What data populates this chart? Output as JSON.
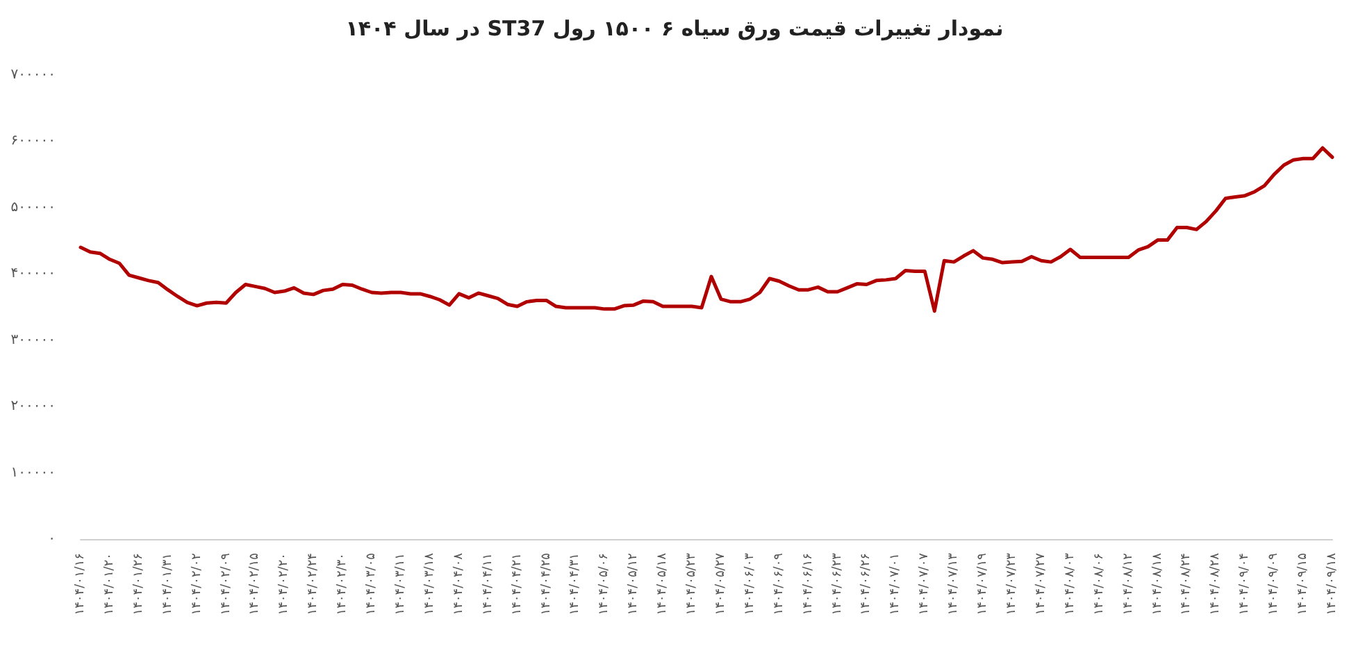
{
  "chart_data": {
    "type": "line",
    "title": "نمودار تغییرات قیمت ورق سیاه ۶ ۱۵۰۰ رول ST37 در سال ۱۴۰۴",
    "categories": [
      "۱۴۰۴/۰۱/۱۶",
      null,
      null,
      "۱۴۰۴/۰۱/۲۰",
      null,
      null,
      "۱۴۰۴/۰۱/۲۶",
      null,
      null,
      "۱۴۰۴/۰۱/۳۱",
      null,
      null,
      "۱۴۰۴/۰۲/۰۲",
      null,
      null,
      "۱۴۰۴/۰۲/۰۹",
      null,
      null,
      "۱۴۰۴/۰۲/۱۵",
      null,
      null,
      "۱۴۰۴/۰۲/۲۰",
      null,
      null,
      "۱۴۰۴/۰۲/۲۴",
      null,
      null,
      "۱۴۰۴/۰۲/۳۰",
      null,
      null,
      "۱۴۰۴/۰۳/۰۵",
      null,
      null,
      "۱۴۰۴/۰۳/۱۱",
      null,
      null,
      "۱۴۰۴/۰۳/۱۸",
      null,
      null,
      "۱۴۰۴/۰۴/۰۸",
      null,
      null,
      "۱۴۰۴/۰۴/۱۱",
      null,
      null,
      "۱۴۰۴/۰۴/۲۱",
      null,
      null,
      "۱۴۰۴/۰۴/۲۵",
      null,
      null,
      "۱۴۰۴/۰۴/۳۱",
      null,
      null,
      "۱۴۰۴/۰۵/۰۶",
      null,
      null,
      "۱۴۰۴/۰۵/۱۲",
      null,
      null,
      "۱۴۰۴/۰۵/۱۸",
      null,
      null,
      "۱۴۰۴/۰۵/۲۳",
      null,
      null,
      "۱۴۰۴/۰۵/۲۷",
      null,
      null,
      "۱۴۰۴/۰۶/۰۳",
      null,
      null,
      "۱۴۰۴/۰۶/۰۹",
      null,
      null,
      "۱۴۰۴/۰۶/۱۶",
      null,
      null,
      "۱۴۰۴/۰۶/۲۳",
      null,
      null,
      "۱۴۰۴/۰۶/۲۶",
      null,
      null,
      "۱۴۰۴/۰۷/۰۱",
      null,
      null,
      "۱۴۰۴/۰۷/۰۷",
      null,
      null,
      "۱۴۰۴/۰۷/۱۳",
      null,
      null,
      "۱۴۰۴/۰۷/۱۹",
      null,
      null,
      "۱۴۰۴/۰۷/۲۳",
      null,
      null,
      "۱۴۰۴/۰۷/۲۷",
      null,
      null,
      "۱۴۰۴/۰۸/۰۳",
      null,
      null,
      "۱۴۰۴/۰۸/۰۶",
      null,
      null,
      "۱۴۰۴/۰۸/۱۲",
      null,
      null,
      "۱۴۰۴/۰۸/۱۸",
      null,
      null,
      "۱۴۰۴/۰۸/۲۴",
      null,
      null,
      "۱۴۰۴/۰۸/۲۸",
      null,
      null,
      "۱۴۰۴/۰۹/۰۴",
      null,
      null,
      "۱۴۰۴/۰۹/۰۹",
      null,
      null,
      "۱۴۰۴/۰۹/۱۵",
      null,
      null,
      "۱۴۰۴/۰۹/۱۸"
    ],
    "series": [
      {
        "color": "#b00000",
        "values": [
          440000,
          433000,
          431000,
          422000,
          416000,
          398000,
          394000,
          390000,
          387000,
          376000,
          366000,
          357000,
          352000,
          356000,
          357000,
          356000,
          372000,
          384000,
          381000,
          378000,
          372000,
          374000,
          379000,
          371000,
          369000,
          375000,
          377000,
          384000,
          383000,
          377000,
          372000,
          371000,
          372000,
          372000,
          370000,
          370000,
          366000,
          361000,
          353000,
          370000,
          364000,
          371000,
          367000,
          363000,
          354000,
          351000,
          358000,
          360000,
          360000,
          351000,
          349000,
          349000,
          349000,
          349000,
          347000,
          347000,
          352000,
          353000,
          359000,
          358000,
          351000,
          351000,
          351000,
          351000,
          349000,
          396000,
          362000,
          358000,
          358000,
          362000,
          372000,
          393000,
          389000,
          382000,
          376000,
          376000,
          380000,
          373000,
          373000,
          379000,
          385000,
          384000,
          390000,
          391000,
          393000,
          405000,
          404000,
          404000,
          344000,
          420000,
          418000,
          427000,
          435000,
          424000,
          422000,
          417000,
          418000,
          419000,
          426000,
          420000,
          418000,
          426000,
          437000,
          425000,
          425000,
          425000,
          425000,
          425000,
          425000,
          436000,
          441000,
          451000,
          451000,
          470000,
          470000,
          467000,
          479000,
          495000,
          514000,
          516000,
          518000,
          524000,
          533000,
          550000,
          564000,
          572000,
          574000,
          574000,
          590000,
          576000
        ]
      }
    ],
    "ylim": [
      0,
      700000
    ],
    "yticks": [
      {
        "value": 0,
        "label": "۰"
      },
      {
        "value": 100000,
        "label": "۱۰۰۰۰۰"
      },
      {
        "value": 200000,
        "label": "۲۰۰۰۰۰"
      },
      {
        "value": 300000,
        "label": "۳۰۰۰۰۰"
      },
      {
        "value": 400000,
        "label": "۴۰۰۰۰۰"
      },
      {
        "value": 500000,
        "label": "۵۰۰۰۰۰"
      },
      {
        "value": 600000,
        "label": "۶۰۰۰۰۰"
      },
      {
        "value": 700000,
        "label": "۷۰۰۰۰۰"
      }
    ],
    "grid": false,
    "marker": "none",
    "line_style": "solid"
  }
}
